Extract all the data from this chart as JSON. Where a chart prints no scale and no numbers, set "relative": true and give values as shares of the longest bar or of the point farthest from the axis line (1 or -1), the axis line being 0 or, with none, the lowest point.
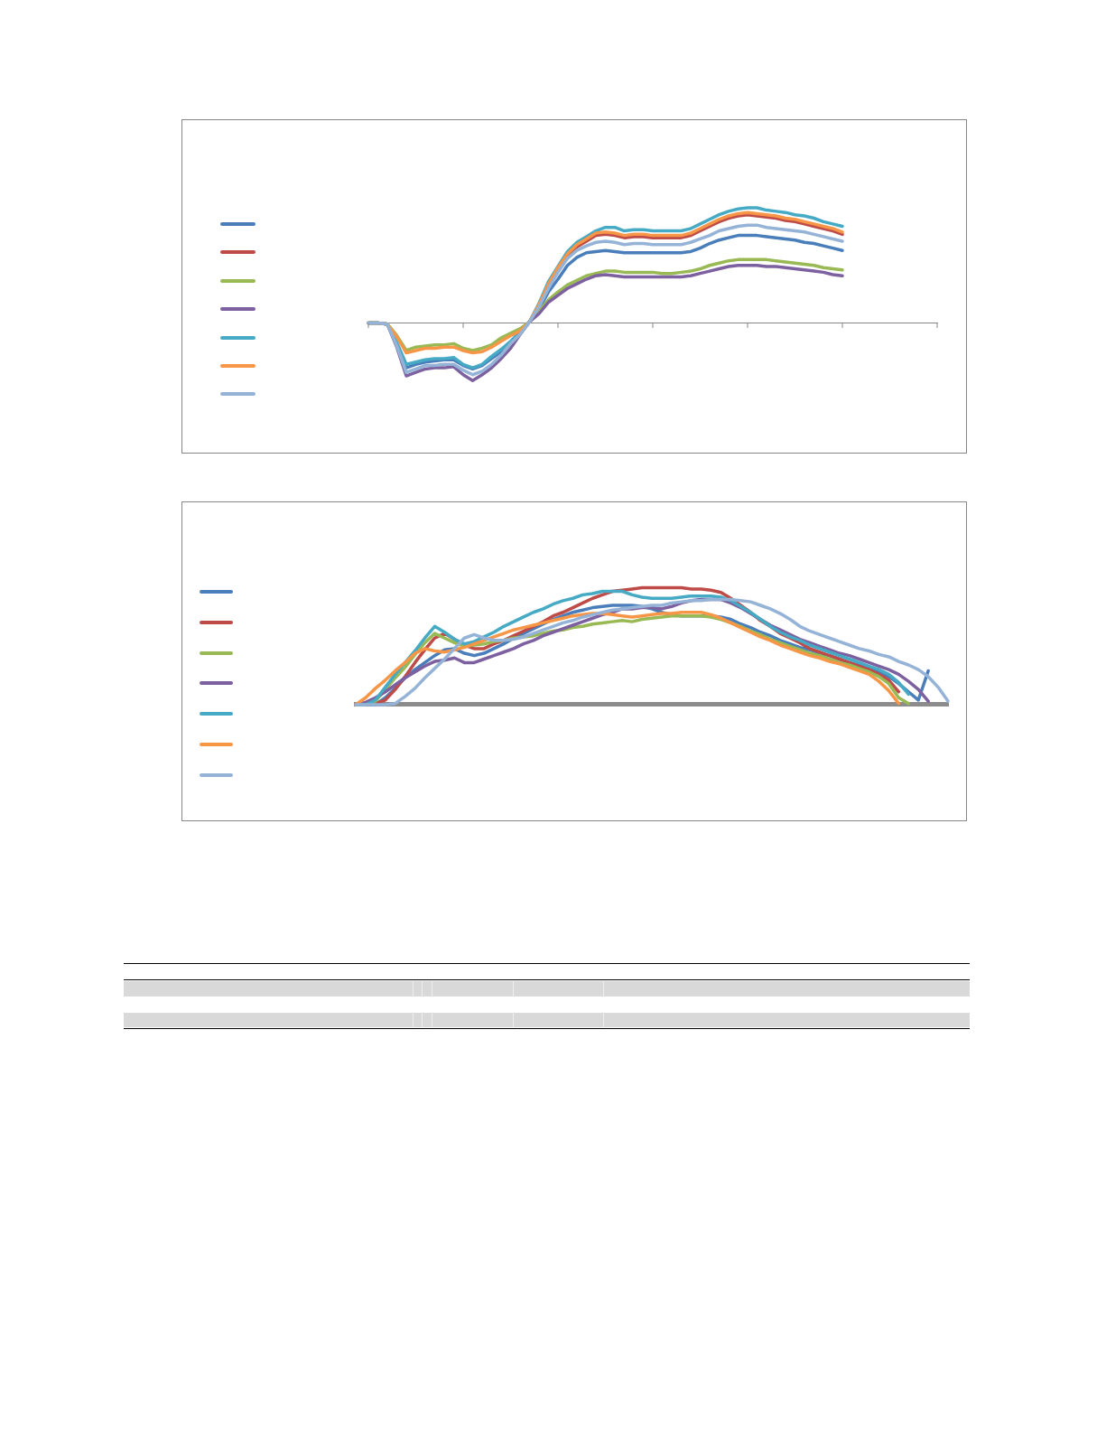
{
  "chart_data": [
    {
      "type": "line",
      "relative": true,
      "line_style": "solid",
      "categories": [
        null,
        null,
        null,
        null,
        null,
        null,
        null,
        null,
        null,
        null,
        null,
        null,
        null,
        null,
        null,
        null,
        null,
        null,
        null,
        null,
        null,
        null,
        null,
        null,
        null,
        null,
        null,
        null,
        null,
        null,
        null,
        null,
        null,
        null,
        null,
        null,
        null,
        null,
        null,
        null,
        null,
        null,
        null,
        null,
        null,
        null,
        null,
        null,
        null,
        null,
        null,
        null,
        null,
        null,
        null,
        null,
        null,
        null,
        null,
        null,
        null
      ],
      "series": [
        {
          "color": "#4a7ebb",
          "values": [
            0,
            0,
            -0.01,
            -0.18,
            -0.39,
            -0.36,
            -0.34,
            -0.33,
            -0.32,
            -0.32,
            -0.37,
            -0.4,
            -0.37,
            -0.31,
            -0.25,
            -0.17,
            -0.09,
            0.01,
            0.12,
            0.27,
            0.38,
            0.5,
            0.57,
            0.61,
            0.62,
            0.63,
            0.62,
            0.61,
            0.61,
            0.61,
            0.61,
            0.61,
            0.61,
            0.61,
            0.62,
            0.65,
            0.69,
            0.72,
            0.74,
            0.76,
            0.76,
            0.76,
            0.75,
            0.74,
            0.73,
            0.72,
            0.7,
            0.69,
            0.67,
            0.65,
            0.63,
            null,
            null,
            null,
            null,
            null,
            null,
            null,
            null,
            null,
            null
          ]
        },
        {
          "color": "#be4b48",
          "values": [
            null,
            null,
            null,
            null,
            null,
            null,
            null,
            null,
            null,
            null,
            null,
            null,
            null,
            null,
            null,
            null,
            null,
            0.01,
            0.15,
            0.33,
            0.47,
            0.59,
            0.66,
            0.71,
            0.76,
            0.77,
            0.76,
            0.74,
            0.75,
            0.75,
            0.74,
            0.74,
            0.74,
            0.74,
            0.76,
            0.8,
            0.84,
            0.88,
            0.91,
            0.93,
            0.94,
            0.93,
            0.92,
            0.91,
            0.89,
            0.88,
            0.86,
            0.84,
            0.82,
            0.8,
            0.77,
            null,
            null,
            null,
            null,
            null,
            null,
            null,
            null,
            null,
            null
          ]
        },
        {
          "color": "#98b954",
          "values": [
            0,
            0,
            -0.01,
            -0.11,
            -0.24,
            -0.21,
            -0.2,
            -0.19,
            -0.19,
            -0.18,
            -0.22,
            -0.24,
            -0.22,
            -0.19,
            -0.13,
            -0.09,
            -0.05,
            0.01,
            0.1,
            0.2,
            0.27,
            0.33,
            0.37,
            0.41,
            0.43,
            0.45,
            0.45,
            0.44,
            0.44,
            0.44,
            0.44,
            0.43,
            0.43,
            0.44,
            0.45,
            0.47,
            0.5,
            0.52,
            0.54,
            0.55,
            0.55,
            0.55,
            0.55,
            0.54,
            0.53,
            0.52,
            0.51,
            0.5,
            0.48,
            0.47,
            0.46,
            null,
            null,
            null,
            null,
            null,
            null,
            null,
            null,
            null,
            null
          ]
        },
        {
          "color": "#7d60a0",
          "values": [
            0,
            0,
            -0.01,
            -0.21,
            -0.46,
            -0.43,
            -0.4,
            -0.39,
            -0.39,
            -0.38,
            -0.45,
            -0.5,
            -0.45,
            -0.39,
            -0.31,
            -0.22,
            -0.1,
            0.01,
            0.08,
            0.18,
            0.24,
            0.3,
            0.34,
            0.38,
            0.41,
            0.42,
            0.41,
            0.4,
            0.4,
            0.4,
            0.4,
            0.4,
            0.4,
            0.4,
            0.41,
            0.43,
            0.45,
            0.47,
            0.49,
            0.5,
            0.5,
            0.5,
            0.49,
            0.49,
            0.48,
            0.47,
            0.46,
            0.45,
            0.44,
            0.42,
            0.41,
            null,
            null,
            null,
            null,
            null,
            null,
            null,
            null,
            null,
            null
          ]
        },
        {
          "color": "#46aac5",
          "values": [
            0,
            0,
            -0.01,
            -0.17,
            -0.36,
            -0.34,
            -0.32,
            -0.31,
            -0.31,
            -0.3,
            -0.36,
            -0.39,
            -0.36,
            -0.29,
            -0.23,
            -0.16,
            -0.08,
            0.01,
            0.17,
            0.36,
            0.49,
            0.62,
            0.7,
            0.75,
            0.8,
            0.83,
            0.83,
            0.8,
            0.81,
            0.81,
            0.8,
            0.8,
            0.8,
            0.8,
            0.82,
            0.86,
            0.9,
            0.94,
            0.97,
            0.99,
            1,
            1,
            0.98,
            0.97,
            0.96,
            0.94,
            0.93,
            0.91,
            0.88,
            0.86,
            0.84,
            null,
            null,
            null,
            null,
            null,
            null,
            null,
            null,
            null,
            null
          ]
        },
        {
          "color": "#f79646",
          "values": [
            0,
            0,
            -0.01,
            -0.12,
            -0.26,
            -0.24,
            -0.22,
            -0.22,
            -0.21,
            -0.21,
            -0.24,
            -0.26,
            -0.25,
            -0.21,
            -0.16,
            -0.11,
            -0.07,
            0.01,
            0.16,
            0.34,
            0.48,
            0.6,
            0.68,
            0.73,
            0.78,
            0.79,
            0.78,
            0.76,
            0.77,
            0.77,
            0.76,
            0.76,
            0.76,
            0.76,
            0.78,
            0.82,
            0.86,
            0.9,
            0.93,
            0.95,
            0.96,
            0.95,
            0.94,
            0.93,
            0.91,
            0.9,
            0.88,
            0.86,
            0.84,
            0.82,
            0.79,
            null,
            null,
            null,
            null,
            null,
            null,
            null,
            null,
            null,
            null
          ]
        },
        {
          "color": "#95b3d7",
          "values": [
            0,
            0,
            -0.01,
            -0.2,
            -0.43,
            -0.4,
            -0.37,
            -0.37,
            -0.36,
            -0.36,
            -0.41,
            -0.45,
            -0.42,
            -0.36,
            -0.28,
            -0.18,
            -0.1,
            0.01,
            0.14,
            0.3,
            0.44,
            0.56,
            0.63,
            0.67,
            0.7,
            0.71,
            0.7,
            0.68,
            0.69,
            0.69,
            0.68,
            0.68,
            0.68,
            0.68,
            0.7,
            0.73,
            0.76,
            0.8,
            0.82,
            0.84,
            0.85,
            0.85,
            0.83,
            0.82,
            0.81,
            0.8,
            0.79,
            0.77,
            0.75,
            0.73,
            0.71,
            null,
            null,
            null,
            null,
            null,
            null,
            null,
            null,
            null,
            null
          ]
        }
      ]
    },
    {
      "type": "line",
      "relative": true,
      "line_style": "solid",
      "categories": [
        null,
        null,
        null,
        null,
        null,
        null,
        null,
        null,
        null,
        null,
        null,
        null,
        null,
        null,
        null,
        null,
        null,
        null,
        null,
        null,
        null,
        null,
        null,
        null,
        null,
        null,
        null,
        null,
        null,
        null,
        null,
        null,
        null,
        null,
        null,
        null,
        null,
        null,
        null,
        null,
        null,
        null,
        null,
        null,
        null,
        null,
        null,
        null,
        null,
        null,
        null,
        null,
        null,
        null,
        null,
        null,
        null,
        null,
        null,
        null,
        null
      ],
      "series": [
        {
          "color": "#4a7ebb",
          "values": [
            0,
            0,
            0,
            0.06,
            0.14,
            0.23,
            0.3,
            0.36,
            0.42,
            0.47,
            0.48,
            0.44,
            0.42,
            0.44,
            0.48,
            0.52,
            0.57,
            0.61,
            0.65,
            0.69,
            0.73,
            0.76,
            0.79,
            0.81,
            0.83,
            0.84,
            0.85,
            0.85,
            0.85,
            0.84,
            0.82,
            0.79,
            0.77,
            0.76,
            0.76,
            0.76,
            0.76,
            0.75,
            0.73,
            0.69,
            0.66,
            0.62,
            0.59,
            0.55,
            0.52,
            0.49,
            0.47,
            0.44,
            0.42,
            0.39,
            0.36,
            0.34,
            0.31,
            0.28,
            0.24,
            0.18,
            0.11,
            0.04,
            0.29,
            null,
            null
          ]
        },
        {
          "color": "#be4b48",
          "values": [
            0,
            0,
            0.01,
            0.04,
            0.13,
            0.24,
            0.36,
            0.47,
            0.57,
            0.61,
            0.56,
            0.51,
            0.48,
            0.48,
            0.52,
            0.55,
            0.59,
            0.63,
            0.67,
            0.71,
            0.76,
            0.79,
            0.83,
            0.87,
            0.91,
            0.94,
            0.97,
            0.98,
            0.99,
            1,
            1,
            1,
            1,
            1,
            0.99,
            0.99,
            0.98,
            0.96,
            0.91,
            0.85,
            0.79,
            0.72,
            0.67,
            0.61,
            0.57,
            0.53,
            0.48,
            0.45,
            0.42,
            0.39,
            0.36,
            0.33,
            0.3,
            0.26,
            0.21,
            0.11,
            null,
            null,
            null,
            null,
            null
          ]
        },
        {
          "color": "#98b954",
          "values": [
            0,
            0,
            0.03,
            0.13,
            0.23,
            0.32,
            0.43,
            0.53,
            0.61,
            0.57,
            0.53,
            0.5,
            0.51,
            0.52,
            0.54,
            0.55,
            0.57,
            0.58,
            0.59,
            0.61,
            0.63,
            0.64,
            0.66,
            0.67,
            0.69,
            0.7,
            0.71,
            0.72,
            0.71,
            0.73,
            0.74,
            0.75,
            0.76,
            0.76,
            0.76,
            0.76,
            0.75,
            0.73,
            0.7,
            0.67,
            0.63,
            0.6,
            0.56,
            0.53,
            0.5,
            0.47,
            0.44,
            0.42,
            0.39,
            0.36,
            0.34,
            0.31,
            0.28,
            0.24,
            0.18,
            0.06,
            0.01,
            null,
            null,
            null,
            null
          ]
        },
        {
          "color": "#7d60a0",
          "values": [
            0,
            0.02,
            0.06,
            0.11,
            0.17,
            0.23,
            0.28,
            0.33,
            0.37,
            0.38,
            0.4,
            0.36,
            0.36,
            0.39,
            0.42,
            0.45,
            0.48,
            0.52,
            0.55,
            0.59,
            0.62,
            0.65,
            0.68,
            0.71,
            0.74,
            0.77,
            0.79,
            0.82,
            0.82,
            0.83,
            0.83,
            0.82,
            0.84,
            0.87,
            0.89,
            0.9,
            0.9,
            0.9,
            0.87,
            0.83,
            0.78,
            0.73,
            0.68,
            0.64,
            0.6,
            0.56,
            0.53,
            0.5,
            0.47,
            0.44,
            0.42,
            0.39,
            0.36,
            0.33,
            0.3,
            0.26,
            0.2,
            0.13,
            0.03,
            null,
            null
          ]
        },
        {
          "color": "#46aac5",
          "values": [
            0,
            0,
            0.04,
            0.15,
            0.26,
            0.36,
            0.46,
            0.57,
            0.67,
            0.62,
            0.56,
            0.52,
            0.54,
            0.58,
            0.62,
            0.67,
            0.71,
            0.75,
            0.79,
            0.82,
            0.86,
            0.89,
            0.91,
            0.94,
            0.95,
            0.97,
            0.97,
            0.97,
            0.94,
            0.92,
            0.91,
            0.91,
            0.91,
            0.92,
            0.93,
            0.93,
            0.93,
            0.92,
            0.89,
            0.84,
            0.79,
            0.73,
            0.67,
            0.62,
            0.58,
            0.55,
            0.51,
            0.48,
            0.45,
            0.42,
            0.39,
            0.36,
            0.33,
            0.3,
            0.26,
            0.19,
            0.09,
            null,
            null,
            null,
            null
          ]
        },
        {
          "color": "#f79646",
          "values": [
            0,
            0.06,
            0.14,
            0.21,
            0.29,
            0.36,
            0.44,
            0.48,
            0.46,
            0.45,
            0.47,
            0.49,
            0.52,
            0.55,
            0.58,
            0.61,
            0.64,
            0.66,
            0.68,
            0.7,
            0.72,
            0.74,
            0.76,
            0.77,
            0.78,
            0.78,
            0.77,
            0.76,
            0.75,
            0.76,
            0.77,
            0.78,
            0.78,
            0.79,
            0.79,
            0.79,
            0.77,
            0.74,
            0.7,
            0.66,
            0.62,
            0.58,
            0.55,
            0.51,
            0.48,
            0.45,
            0.42,
            0.4,
            0.37,
            0.35,
            0.32,
            0.29,
            0.26,
            0.2,
            0.12,
            0.01,
            null,
            null,
            null,
            null,
            null
          ]
        },
        {
          "color": "#95b3d7",
          "values": [
            0,
            0,
            0,
            0,
            0.01,
            0.07,
            0.14,
            0.23,
            0.31,
            0.39,
            0.48,
            0.57,
            0.6,
            0.57,
            0.55,
            0.55,
            0.56,
            0.58,
            0.61,
            0.64,
            0.67,
            0.7,
            0.72,
            0.75,
            0.77,
            0.79,
            0.81,
            0.82,
            0.83,
            0.84,
            0.85,
            0.85,
            0.87,
            0.88,
            0.89,
            0.89,
            0.9,
            0.9,
            0.9,
            0.89,
            0.88,
            0.85,
            0.82,
            0.78,
            0.73,
            0.67,
            0.63,
            0.6,
            0.57,
            0.54,
            0.51,
            0.48,
            0.46,
            0.43,
            0.41,
            0.37,
            0.34,
            0.3,
            0.24,
            0.15,
            0.03
          ]
        }
      ]
    }
  ]
}
